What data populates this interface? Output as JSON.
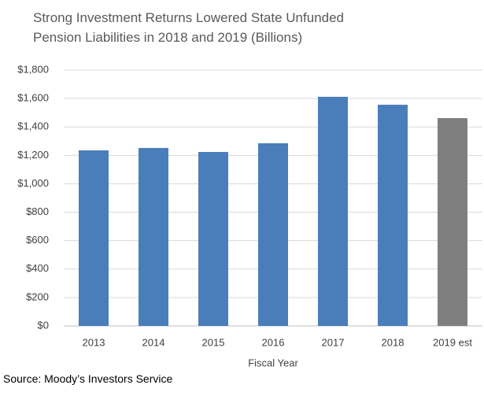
{
  "chart_data": {
    "type": "bar",
    "title": "Strong Investment Returns Lowered State Unfunded Pension Liabilities in 2018 and 2019 (Billions)",
    "x_label": "Fiscal Year",
    "source": "Source: Moody’s Investors Service",
    "categories": [
      "2013",
      "2014",
      "2015",
      "2016",
      "2017",
      "2018",
      "2019 est"
    ],
    "values": [
      1235,
      1252,
      1224,
      1285,
      1612,
      1556,
      1462
    ],
    "colors": [
      "#4a7ebb",
      "#4a7ebb",
      "#4a7ebb",
      "#4a7ebb",
      "#4a7ebb",
      "#4a7ebb",
      "#7f7f7f"
    ],
    "ylim": [
      0,
      1800
    ],
    "yticks": [
      {
        "value": 0,
        "label": "$0"
      },
      {
        "value": 200,
        "label": "$200"
      },
      {
        "value": 400,
        "label": "$400"
      },
      {
        "value": 600,
        "label": "$600"
      },
      {
        "value": 800,
        "label": "$800"
      },
      {
        "value": 1000,
        "label": "$1,000"
      },
      {
        "value": 1200,
        "label": "$1,200"
      },
      {
        "value": 1400,
        "label": "$1,400"
      },
      {
        "value": 1600,
        "label": "$1,600"
      },
      {
        "value": 1800,
        "label": "$1,800"
      }
    ],
    "grid": true
  }
}
